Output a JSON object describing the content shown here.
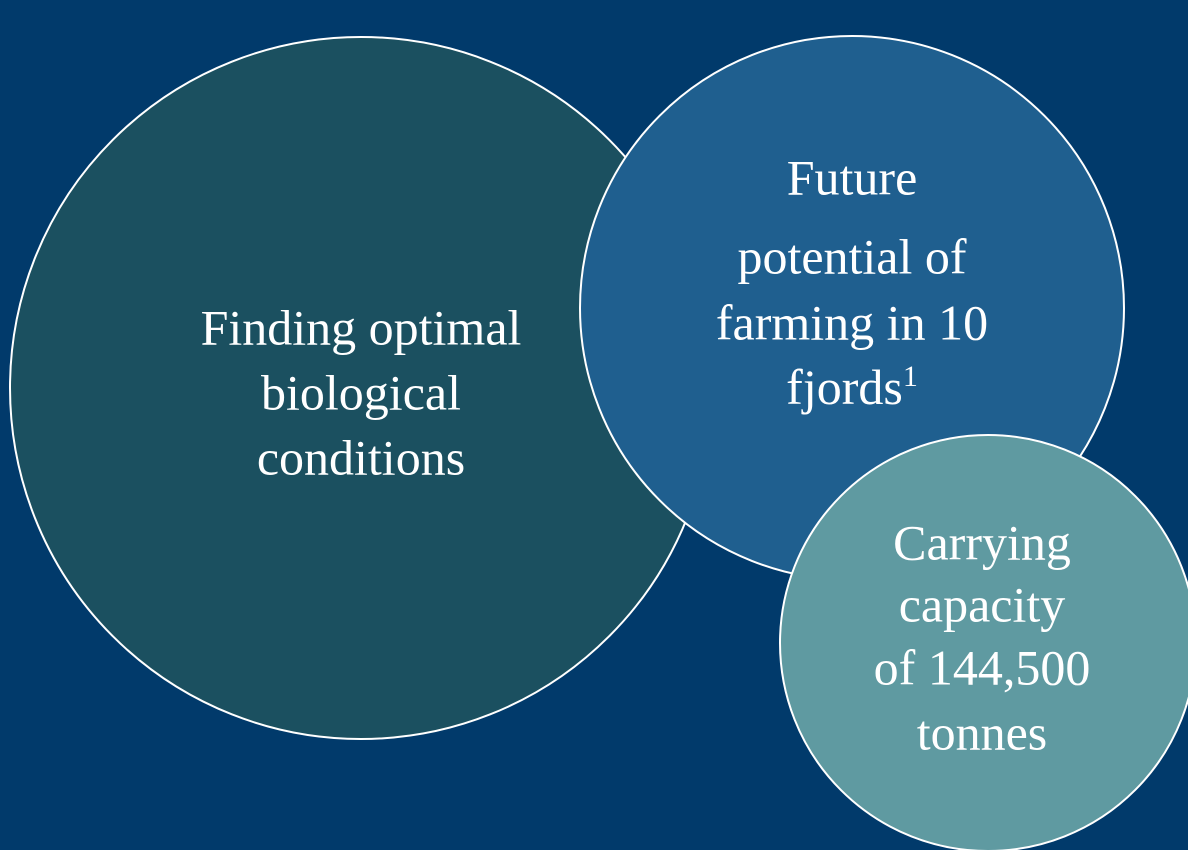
{
  "circles": [
    {
      "lines": [
        "Finding optimal",
        "biological",
        "conditions"
      ]
    },
    {
      "lines": [
        "Future",
        "potential of",
        "farming in 10",
        "fjords"
      ],
      "footnote": "1"
    },
    {
      "lines": [
        "Carrying",
        "capacity",
        "of 144,500",
        "tonnes"
      ]
    }
  ]
}
